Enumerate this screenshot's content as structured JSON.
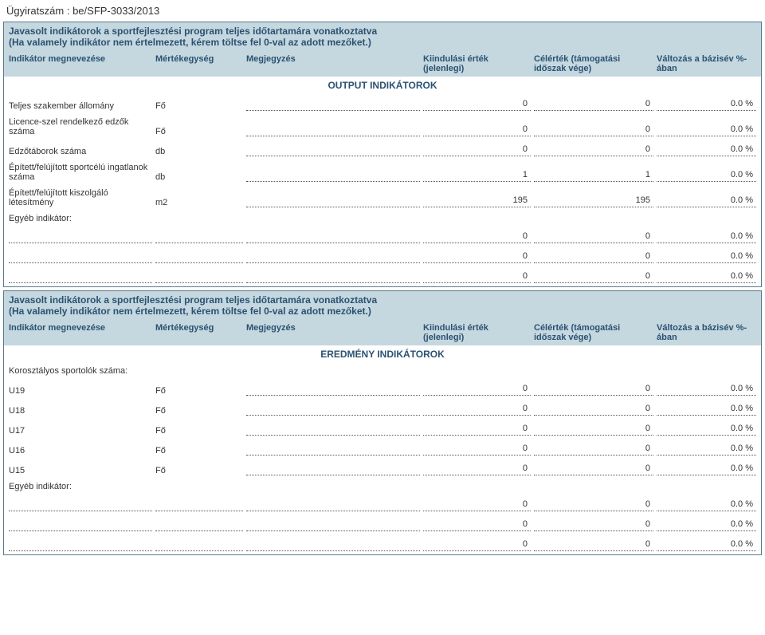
{
  "caseNumber": "Ügyiratszám : be/SFP-3033/2013",
  "block1": {
    "titleLine1": "Javasolt indikátorok a sportfejlesztési program teljes időtartamára vonatkoztatva",
    "titleLine2": "(Ha valamely indikátor nem értelmezett, kérem töltse fel 0-val az adott mezőket.)",
    "headers": {
      "name": "Indikátor megnevezése",
      "unit": "Mértékegység",
      "note": "Megjegyzés",
      "start": "Kiindulási érték (jelenlegi)",
      "target": "Célérték (támogatási időszak vége)",
      "change": "Változás a bázisév %-ában"
    },
    "sectionLabel": "OUTPUT INDIKÁTOROK",
    "rows": [
      {
        "name": "Teljes szakember állomány",
        "unit": "Fő",
        "note": "",
        "start": "0",
        "target": "0",
        "change": "0.0 %"
      },
      {
        "name": "Licence-szel rendelkező edzők száma",
        "unit": "Fő",
        "note": "",
        "start": "0",
        "target": "0",
        "change": "0.0 %"
      },
      {
        "name": "Edzőtáborok száma",
        "unit": "db",
        "note": "",
        "start": "0",
        "target": "0",
        "change": "0.0 %"
      },
      {
        "name": "Épített/felújított sportcélú ingatlanok száma",
        "unit": "db",
        "note": "",
        "start": "1",
        "target": "1",
        "change": "0.0 %"
      },
      {
        "name": "Épített/felújított kiszolgáló létesítmény",
        "unit": "m2",
        "note": "",
        "start": "195",
        "target": "195",
        "change": "0.0 %"
      }
    ],
    "otherLabel": "Egyéb indikátor:",
    "otherRows": [
      {
        "name": "",
        "unit": "",
        "note": "",
        "start": "0",
        "target": "0",
        "change": "0.0 %"
      },
      {
        "name": "",
        "unit": "",
        "note": "",
        "start": "0",
        "target": "0",
        "change": "0.0 %"
      },
      {
        "name": "",
        "unit": "",
        "note": "",
        "start": "0",
        "target": "0",
        "change": "0.0 %"
      }
    ]
  },
  "block2": {
    "titleLine1": "Javasolt indikátorok a sportfejlesztési program teljes időtartamára vonatkoztatva",
    "titleLine2": "(Ha valamely indikátor nem értelmezett, kérem töltse fel 0-val az adott mezőket.)",
    "headers": {
      "name": "Indikátor megnevezése",
      "unit": "Mértékegység",
      "note": "Megjegyzés",
      "start": "Kiindulási érték (jelenlegi)",
      "target": "Célérték (támogatási időszak vége)",
      "change": "Változás a bázisév %-ában"
    },
    "sectionLabel": "EREDMÉNY INDIKÁTOROK",
    "ageLabel": "Korosztályos sportolók száma:",
    "rows": [
      {
        "name": "U19",
        "unit": "Fő",
        "note": "",
        "start": "0",
        "target": "0",
        "change": "0.0 %"
      },
      {
        "name": "U18",
        "unit": "Fő",
        "note": "",
        "start": "0",
        "target": "0",
        "change": "0.0 %"
      },
      {
        "name": "U17",
        "unit": "Fő",
        "note": "",
        "start": "0",
        "target": "0",
        "change": "0.0 %"
      },
      {
        "name": "U16",
        "unit": "Fő",
        "note": "",
        "start": "0",
        "target": "0",
        "change": "0.0 %"
      },
      {
        "name": "U15",
        "unit": "Fő",
        "note": "",
        "start": "0",
        "target": "0",
        "change": "0.0 %"
      }
    ],
    "otherLabel": "Egyéb indikátor:",
    "otherRows": [
      {
        "name": "",
        "unit": "",
        "note": "",
        "start": "0",
        "target": "0",
        "change": "0.0 %"
      },
      {
        "name": "",
        "unit": "",
        "note": "",
        "start": "0",
        "target": "0",
        "change": "0.0 %"
      },
      {
        "name": "",
        "unit": "",
        "note": "",
        "start": "0",
        "target": "0",
        "change": "0.0 %"
      }
    ]
  }
}
